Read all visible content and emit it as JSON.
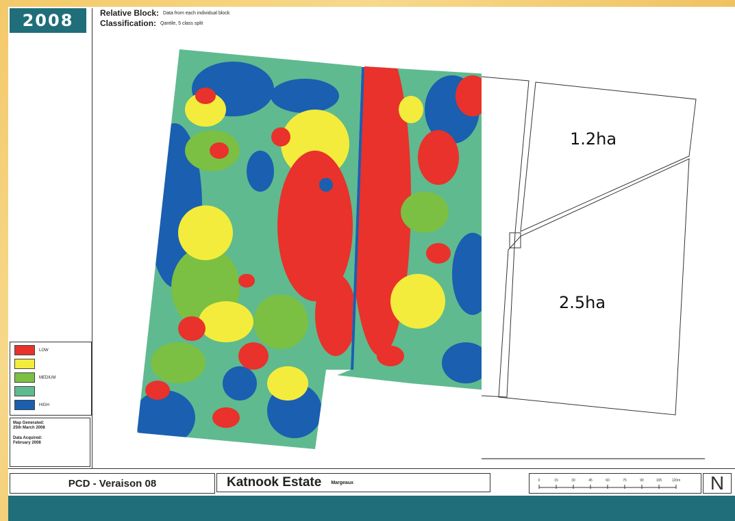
{
  "year_badge": "2008",
  "header": {
    "relative_block_label": "Relative Block:",
    "relative_block_value": "Data from each individual block",
    "classification_label": "Classification:",
    "classification_value": "Qantile, 5 class split"
  },
  "legend": {
    "items": [
      {
        "label": "LOW",
        "color": "#e8322b"
      },
      {
        "label": "",
        "color": "#f4ec3c"
      },
      {
        "label": "MEDIUM",
        "color": "#7bc043"
      },
      {
        "label": "",
        "color": "#5fba8f"
      },
      {
        "label": "HIGH",
        "color": "#1a5fb0"
      }
    ]
  },
  "meta": {
    "generated_label": "Map Generated:",
    "generated_value": "25th March 2008",
    "acquired_label": "Data Acquired:",
    "acquired_value": "February 2008"
  },
  "areas": {
    "upper": "1.2ha",
    "lower": "2.5ha"
  },
  "footer": {
    "title": "PCD - Veraison 08",
    "estate": "Katnook Estate",
    "region": "Margeaux",
    "north": "N",
    "scale_labels": [
      "0",
      "15",
      "30",
      "45",
      "60",
      "75",
      "90",
      "105",
      "120m"
    ]
  },
  "colors": {
    "accent": "#1f6e7a",
    "low": "#e8322b",
    "yellow": "#f4ec3c",
    "green": "#7bc043",
    "teal": "#5fba8f",
    "high": "#1a5fb0"
  }
}
